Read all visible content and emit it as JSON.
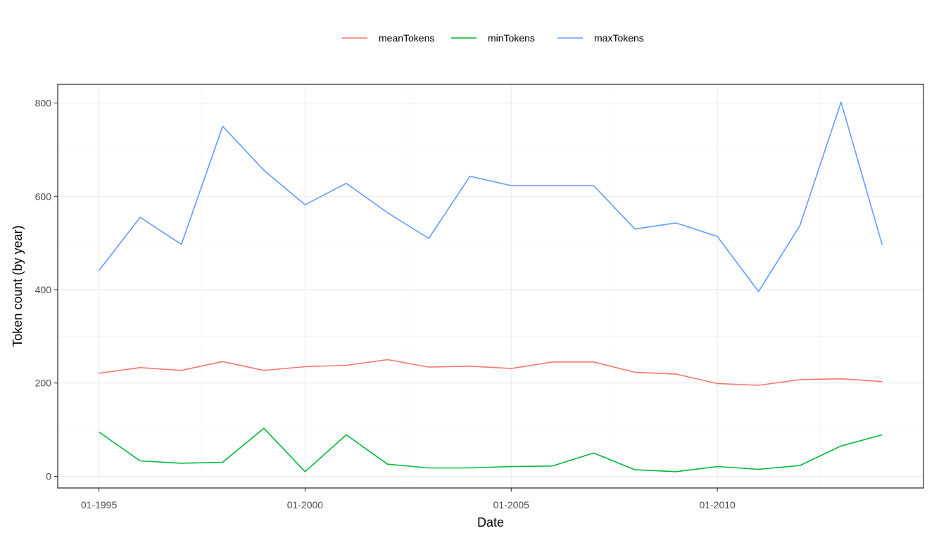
{
  "chart_data": {
    "type": "line",
    "xlabel": "Date",
    "ylabel": "Token count (by year)",
    "x_tick_labels": [
      "01-1995",
      "01-2000",
      "01-2005",
      "01-2010"
    ],
    "x_tick_values": [
      1995,
      2000,
      2005,
      2010
    ],
    "y_tick_labels": [
      "0",
      "200",
      "400",
      "600",
      "800"
    ],
    "y_tick_values": [
      0,
      200,
      400,
      600,
      800
    ],
    "xlim": [
      1994.0,
      2015.0
    ],
    "ylim": [
      -25,
      840
    ],
    "grid": true,
    "legend_position": "top",
    "x": [
      1995,
      1996,
      1997,
      1998,
      1999,
      2000,
      2001,
      2002,
      2003,
      2004,
      2005,
      2006,
      2007,
      2008,
      2009,
      2010,
      2011,
      2012,
      2013,
      2014
    ],
    "series": [
      {
        "name": "meanTokens",
        "color": "#f8766d",
        "values": [
          221,
          233,
          227,
          246,
          227,
          235,
          238,
          250,
          234,
          236,
          231,
          245,
          245,
          223,
          219,
          199,
          195,
          207,
          209,
          203
        ]
      },
      {
        "name": "minTokens",
        "color": "#00ba38",
        "values": [
          95,
          33,
          28,
          30,
          103,
          10,
          89,
          26,
          18,
          18,
          21,
          22,
          50,
          14,
          10,
          21,
          15,
          23,
          65,
          89
        ]
      },
      {
        "name": "maxTokens",
        "color": "#619cff",
        "values": [
          441,
          555,
          497,
          750,
          656,
          582,
          628,
          565,
          510,
          643,
          623,
          623,
          623,
          530,
          543,
          514,
          396,
          537,
          802,
          496
        ]
      }
    ]
  }
}
